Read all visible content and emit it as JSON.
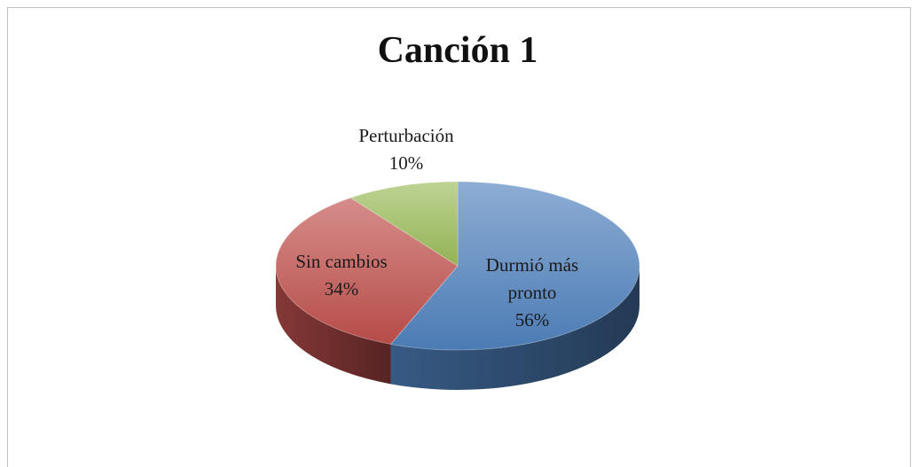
{
  "chart_data": {
    "type": "pie",
    "title": "Canción 1",
    "categories": [
      "Durmió más pronto",
      "Sin cambios",
      "Perturbación"
    ],
    "values": [
      56,
      34,
      10
    ],
    "value_labels": [
      "56%",
      "34%",
      "10%"
    ],
    "colors": [
      "#4f81bd",
      "#c0504d",
      "#9bbb59"
    ]
  }
}
